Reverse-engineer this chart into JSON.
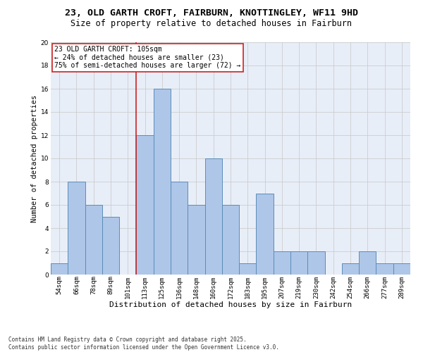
{
  "title_line1": "23, OLD GARTH CROFT, FAIRBURN, KNOTTINGLEY, WF11 9HD",
  "title_line2": "Size of property relative to detached houses in Fairburn",
  "xlabel": "Distribution of detached houses by size in Fairburn",
  "ylabel": "Number of detached properties",
  "bar_labels": [
    "54sqm",
    "66sqm",
    "78sqm",
    "89sqm",
    "101sqm",
    "113sqm",
    "125sqm",
    "136sqm",
    "148sqm",
    "160sqm",
    "172sqm",
    "183sqm",
    "195sqm",
    "207sqm",
    "219sqm",
    "230sqm",
    "242sqm",
    "254sqm",
    "266sqm",
    "277sqm",
    "289sqm"
  ],
  "bar_values": [
    1,
    8,
    6,
    5,
    0,
    12,
    16,
    8,
    6,
    10,
    6,
    1,
    7,
    2,
    2,
    2,
    0,
    1,
    2,
    1,
    1
  ],
  "bar_color": "#aec6e8",
  "bar_edge_color": "#5b8db8",
  "vline_x": 4.5,
  "vline_color": "#cc2222",
  "annotation_text": "23 OLD GARTH CROFT: 105sqm\n← 24% of detached houses are smaller (23)\n75% of semi-detached houses are larger (72) →",
  "annotation_box_color": "#ffffff",
  "annotation_box_edge_color": "#cc2222",
  "ylim": [
    0,
    20
  ],
  "yticks": [
    0,
    2,
    4,
    6,
    8,
    10,
    12,
    14,
    16,
    18,
    20
  ],
  "grid_color": "#cccccc",
  "background_color": "#e8eef8",
  "footer_text": "Contains HM Land Registry data © Crown copyright and database right 2025.\nContains public sector information licensed under the Open Government Licence v3.0.",
  "title_fontsize": 9.5,
  "subtitle_fontsize": 8.5,
  "axis_label_fontsize": 8,
  "tick_fontsize": 6.5,
  "annotation_fontsize": 7,
  "footer_fontsize": 5.5,
  "ylabel_fontsize": 7.5
}
